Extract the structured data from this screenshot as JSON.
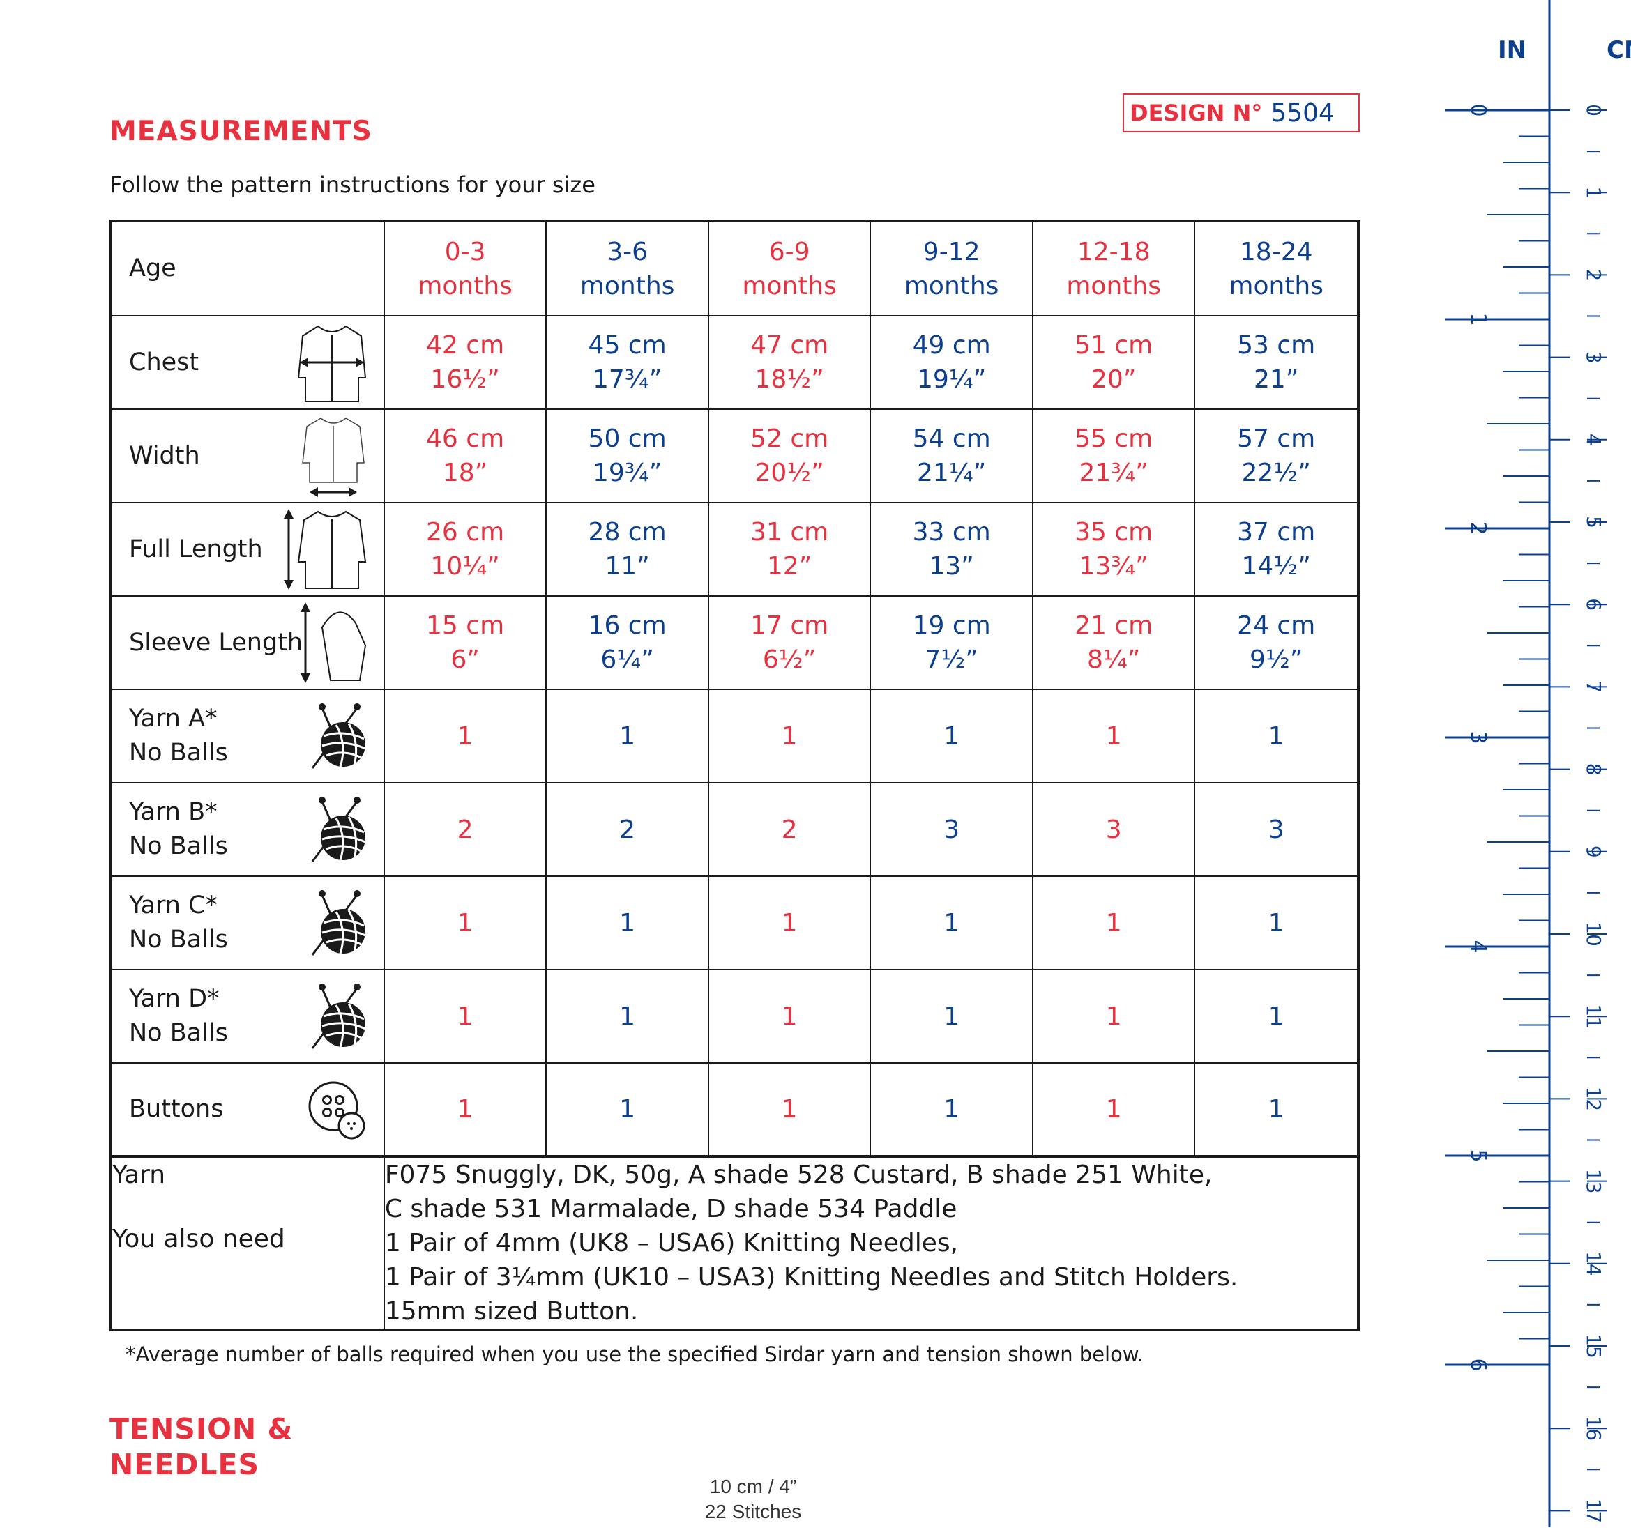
{
  "design": {
    "label": "DESIGN N°",
    "number": "5504"
  },
  "headings": {
    "measurements": "MEASUREMENTS",
    "tension_line1": "TENSION &",
    "tension_line2": "NEEDLES"
  },
  "subtitle": "Follow the pattern instructions for your size",
  "colors": {
    "red": "#e8313f",
    "blue": "#0d3f8f",
    "text": "#1a1a1a"
  },
  "table": {
    "age_label": "Age",
    "sizes": [
      {
        "range": "0-3",
        "unit": "months"
      },
      {
        "range": "3-6",
        "unit": "months"
      },
      {
        "range": "6-9",
        "unit": "months"
      },
      {
        "range": "9-12",
        "unit": "months"
      },
      {
        "range": "12-18",
        "unit": "months"
      },
      {
        "range": "18-24",
        "unit": "months"
      }
    ],
    "rows": [
      {
        "label": "Chest",
        "icon": "cardigan-chest-icon",
        "values": [
          [
            "42 cm",
            "16½”"
          ],
          [
            "45 cm",
            "17¾”"
          ],
          [
            "47 cm",
            "18½”"
          ],
          [
            "49 cm",
            "19¼”"
          ],
          [
            "51 cm",
            "20”"
          ],
          [
            "53 cm",
            "21”"
          ]
        ]
      },
      {
        "label": "Width",
        "icon": "cardigan-width-icon",
        "values": [
          [
            "46 cm",
            "18”"
          ],
          [
            "50 cm",
            "19¾”"
          ],
          [
            "52 cm",
            "20½”"
          ],
          [
            "54 cm",
            "21¼”"
          ],
          [
            "55 cm",
            "21¾”"
          ],
          [
            "57 cm",
            "22½”"
          ]
        ]
      },
      {
        "label": "Full Length",
        "icon": "cardigan-length-icon",
        "values": [
          [
            "26 cm",
            "10¼”"
          ],
          [
            "28 cm",
            "11”"
          ],
          [
            "31 cm",
            "12”"
          ],
          [
            "33 cm",
            "13”"
          ],
          [
            "35 cm",
            "13¾”"
          ],
          [
            "37 cm",
            "14½”"
          ]
        ]
      },
      {
        "label": "Sleeve Length",
        "icon": "sleeve-length-icon",
        "values": [
          [
            "15 cm",
            "6”"
          ],
          [
            "16 cm",
            "6¼”"
          ],
          [
            "17 cm",
            "6½”"
          ],
          [
            "19 cm",
            "7½”"
          ],
          [
            "21 cm",
            "8¼”"
          ],
          [
            "24 cm",
            "9½”"
          ]
        ]
      }
    ],
    "yarn_rows": [
      {
        "line1": "Yarn A*",
        "line2": "No Balls",
        "values": [
          "1",
          "1",
          "1",
          "1",
          "1",
          "1"
        ]
      },
      {
        "line1": "Yarn B*",
        "line2": "No Balls",
        "values": [
          "2",
          "2",
          "2",
          "3",
          "3",
          "3"
        ]
      },
      {
        "line1": "Yarn C*",
        "line2": "No Balls",
        "values": [
          "1",
          "1",
          "1",
          "1",
          "1",
          "1"
        ]
      },
      {
        "line1": "Yarn D*",
        "line2": "No Balls",
        "values": [
          "1",
          "1",
          "1",
          "1",
          "1",
          "1"
        ]
      }
    ],
    "buttons_row": {
      "label": "Buttons",
      "values": [
        "1",
        "1",
        "1",
        "1",
        "1",
        "1"
      ]
    },
    "footer": {
      "yarn_label": "Yarn",
      "also_label": "You also need",
      "yarn_line1": "F075 Snuggly, DK, 50g, A shade 528 Custard, B shade 251 White,",
      "yarn_line2": "C shade 531 Marmalade, D shade 534 Paddle",
      "need_line1": "1 Pair of 4mm (UK8 – USA6) Knitting Needles,",
      "need_line2": "1 Pair of 3¼mm (UK10 – USA3) Knitting Needles and Stitch Holders.",
      "need_line3": "15mm sized Button."
    }
  },
  "footnote": "*Average number of balls required when you use the specified Sirdar yarn and tension shown below.",
  "tension": {
    "size": "10 cm / 4”",
    "stitches": "22 Stitches"
  },
  "ruler": {
    "in_label": "IN",
    "cm_label": "CM",
    "inch_numbers": [
      "0",
      "1",
      "2",
      "3",
      "4",
      "5",
      "6"
    ],
    "cm_numbers": [
      "0",
      "1",
      "2",
      "3",
      "4",
      "5",
      "6",
      "7",
      "8",
      "9",
      "10",
      "11",
      "12",
      "13",
      "14",
      "15",
      "16",
      "17"
    ]
  }
}
